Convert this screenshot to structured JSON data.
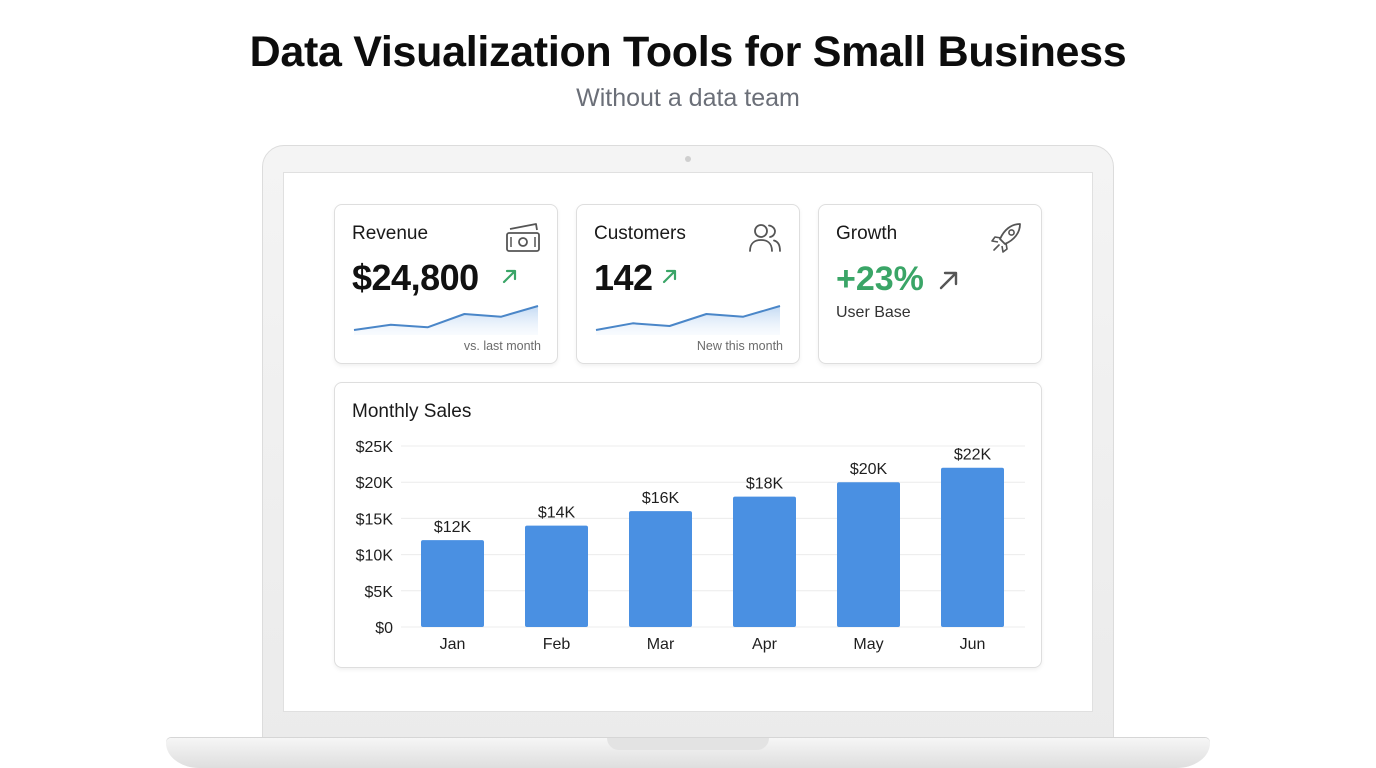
{
  "header": {
    "title": "Data Visualization Tools for Small Business",
    "subtitle": "Without a data team"
  },
  "cards": {
    "revenue": {
      "title": "Revenue",
      "value": "$24,800",
      "note": "vs. last month",
      "icon": "money-icon",
      "trend_icon": "arrow-up-right-icon",
      "sparkline": [
        6,
        10,
        8,
        18,
        16,
        24
      ]
    },
    "customers": {
      "title": "Customers",
      "value": "142",
      "note": "New this month",
      "icon": "users-icon",
      "trend_icon": "arrow-up-right-icon",
      "sparkline": [
        6,
        11,
        9,
        18,
        16,
        24
      ]
    },
    "growth": {
      "title": "Growth",
      "value": "+23%",
      "sub": "User Base",
      "icon": "rocket-icon",
      "trend_icon": "arrow-up-right-icon"
    }
  },
  "colors": {
    "accent_blue": "#4a90e2",
    "positive_green": "#3aa567",
    "sparkline_line": "#4a86c8"
  },
  "chart_data": {
    "type": "bar",
    "title": "Monthly Sales",
    "categories": [
      "Jan",
      "Feb",
      "Mar",
      "Apr",
      "May",
      "Jun"
    ],
    "values": [
      12000,
      14000,
      16000,
      18000,
      20000,
      22000
    ],
    "data_labels": [
      "$12K",
      "$14K",
      "$16K",
      "$18K",
      "$20K",
      "$22K"
    ],
    "y_ticks": [
      0,
      5000,
      10000,
      15000,
      20000,
      25000
    ],
    "y_tick_labels": [
      "$0",
      "$5K",
      "$10K",
      "$15K",
      "$20K",
      "$25K"
    ],
    "ylim": [
      0,
      25000
    ],
    "grid": true,
    "xlabel": "",
    "ylabel": ""
  }
}
